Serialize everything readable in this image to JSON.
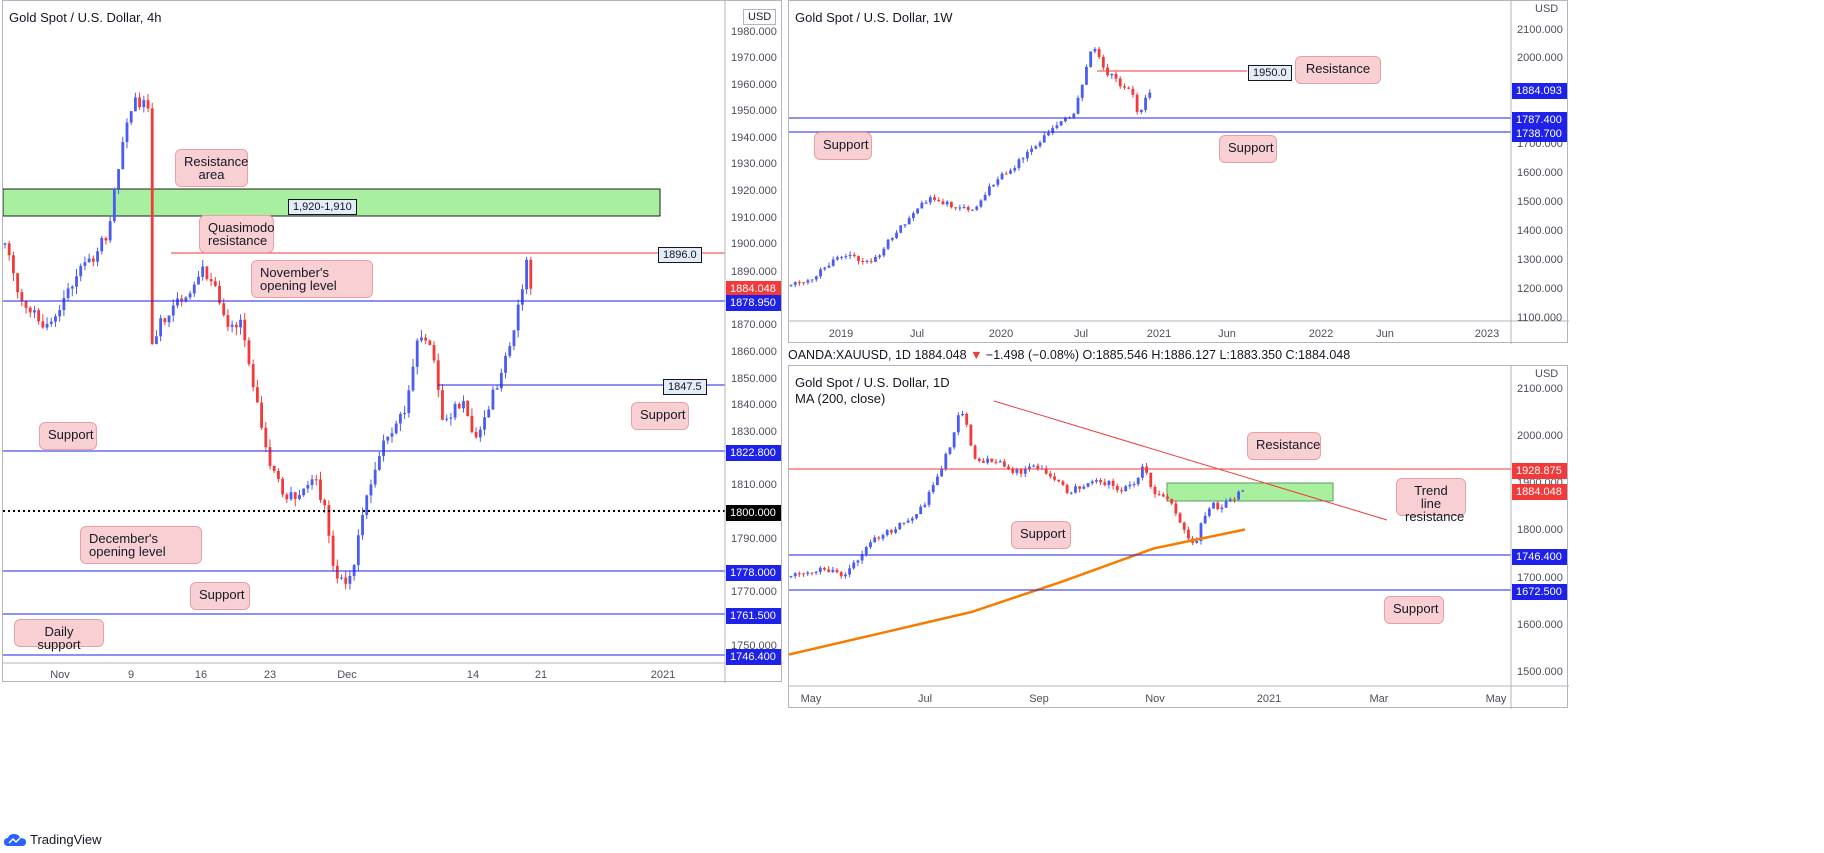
{
  "left": {
    "title": "Gold Spot / U.S. Dollar, 4h",
    "currency": "USD",
    "y_ticks": [
      "1980.000",
      "1970.000",
      "1960.000",
      "1950.000",
      "1940.000",
      "1930.000",
      "1920.000",
      "1910.000",
      "1900.000",
      "1890.000",
      "1870.000",
      "1860.000",
      "1850.000",
      "1840.000",
      "1830.000",
      "1810.000",
      "1790.000",
      "1770.000",
      "1750.000"
    ],
    "x_ticks": [
      "Nov",
      "9",
      "16",
      "23",
      "Dec",
      "14",
      "21",
      "2021"
    ],
    "tags": {
      "t1896": "1896.0",
      "t1884": "1884.048",
      "t1879": "1878.950",
      "t1847": "1847.5",
      "t1822": "1822.800",
      "t1800": "1800.000",
      "t1778": "1778.000",
      "t1761": "1761.500",
      "t1746": "1746.400"
    },
    "zone_label": "1,920-1,910",
    "callouts": {
      "resistance_area": "Resistance area",
      "quasimodo": "Quasimodo resistance",
      "november": "November's opening level",
      "support_right": "Support",
      "support_left": "Support",
      "december": "December's opening level",
      "support_bottom": "Support",
      "daily_support": "Daily support"
    }
  },
  "top_right": {
    "title": "Gold Spot / U.S. Dollar, 1W",
    "currency": "USD",
    "y_ticks": [
      "2100.000",
      "2000.000",
      "1700.000",
      "1600.000",
      "1500.000",
      "1400.000",
      "1300.000",
      "1200.000",
      "1100.000"
    ],
    "x_ticks": [
      "2019",
      "Jul",
      "2020",
      "Jul",
      "2021",
      "Jun",
      "2022",
      "Jun",
      "2023"
    ],
    "tags": {
      "t1884": "1884.093",
      "t1787": "1787.400",
      "t1738": "1738.700",
      "t1950": "1950.0"
    },
    "callouts": {
      "resistance": "Resistance",
      "support_left": "Support",
      "support_right": "Support"
    }
  },
  "bottom_right": {
    "title": "Gold Spot / U.S. Dollar, 1D",
    "ma_label": "MA (200, close)",
    "ohlc": {
      "symbol": "OANDA:XAUUSD, 1D",
      "last": "1884.048",
      "arrow": "▼",
      "change": "−1.498 (−0.08%)",
      "o": "1885.546",
      "h": "1886.127",
      "l": "1883.350",
      "c": "1884.048",
      "o_label": "O:",
      "h_label": "H:",
      "l_label": "L:",
      "c_label": "C:"
    },
    "currency": "USD",
    "y_ticks": [
      "2100.000",
      "2000.000",
      "1900.000",
      "1800.000",
      "1700.000",
      "1600.000",
      "1500.000"
    ],
    "x_ticks": [
      "May",
      "Jul",
      "Sep",
      "Nov",
      "2021",
      "Mar",
      "May"
    ],
    "tags": {
      "t1928": "1928.875",
      "t1884": "1884.048",
      "t1746": "1746.400",
      "t1672": "1672.500"
    },
    "callouts": {
      "resistance": "Resistance",
      "trend": "Trend line resistance",
      "support_left": "Support",
      "support_right": "Support"
    }
  },
  "colors": {
    "up": "#4b5cf0",
    "down": "#f23a3a",
    "support": "#1e22e8",
    "resistance": "#f23a3a",
    "zone": "#a8f0a0",
    "ma": "#f57c00"
  },
  "watermark": "TradingView",
  "chart_data": [
    {
      "type": "candlestick",
      "title": "Gold Spot / U.S. Dollar, 4h",
      "ylim": [
        1743,
        1988
      ],
      "x_ticks": [
        "Nov",
        "9",
        "16",
        "23",
        "Dec",
        "14",
        "21",
        "2021"
      ],
      "levels": {
        "support": [
          1878.95,
          1847.5,
          1822.8,
          1778.0,
          1761.5,
          1746.4
        ],
        "resistance": [
          1896.0
        ],
        "round_number": [
          1800.0
        ]
      },
      "zones": [
        {
          "label": "1,920-1,910",
          "from": 1910,
          "to": 1920
        }
      ],
      "last_price": 1884.048,
      "path": [
        [
          0,
          1900
        ],
        [
          10,
          1880
        ],
        [
          20,
          1875
        ],
        [
          30,
          1868
        ],
        [
          40,
          1880
        ],
        [
          50,
          1890
        ],
        [
          60,
          1895
        ],
        [
          70,
          1905
        ],
        [
          78,
          1930
        ],
        [
          82,
          1945
        ],
        [
          88,
          1955
        ],
        [
          95,
          1952
        ],
        [
          98,
          1950
        ],
        [
          100,
          1862
        ],
        [
          105,
          1870
        ],
        [
          112,
          1875
        ],
        [
          120,
          1880
        ],
        [
          128,
          1885
        ],
        [
          135,
          1890
        ],
        [
          140,
          1888
        ],
        [
          148,
          1875
        ],
        [
          155,
          1868
        ],
        [
          160,
          1872
        ],
        [
          165,
          1860
        ],
        [
          172,
          1840
        ],
        [
          180,
          1818
        ],
        [
          188,
          1808
        ],
        [
          195,
          1805
        ],
        [
          205,
          1808
        ],
        [
          212,
          1812
        ],
        [
          218,
          1800
        ],
        [
          225,
          1775
        ],
        [
          232,
          1772
        ],
        [
          238,
          1782
        ],
        [
          245,
          1805
        ],
        [
          252,
          1815
        ],
        [
          258,
          1825
        ],
        [
          265,
          1830
        ],
        [
          272,
          1838
        ],
        [
          280,
          1862
        ],
        [
          285,
          1868
        ],
        [
          292,
          1858
        ],
        [
          298,
          1832
        ],
        [
          305,
          1838
        ],
        [
          312,
          1840
        ],
        [
          318,
          1828
        ],
        [
          322,
          1830
        ],
        [
          328,
          1838
        ],
        [
          335,
          1848
        ],
        [
          340,
          1858
        ],
        [
          345,
          1865
        ],
        [
          350,
          1878
        ],
        [
          355,
          1893
        ],
        [
          358,
          1884
        ]
      ]
    },
    {
      "type": "candlestick",
      "title": "Gold Spot / U.S. Dollar, 1W",
      "ylim": [
        1095,
        2130
      ],
      "x_ticks": [
        "2019",
        "Jul",
        "2020",
        "Jul",
        "2021",
        "Jun",
        "2022",
        "Jun",
        "2023"
      ],
      "levels": {
        "support": [
          1787.4,
          1738.7
        ],
        "resistance": [
          1950.0
        ]
      },
      "last_price": 1884.093,
      "path": [
        [
          0,
          1210
        ],
        [
          10,
          1220
        ],
        [
          20,
          1240
        ],
        [
          30,
          1280
        ],
        [
          40,
          1300
        ],
        [
          50,
          1320
        ],
        [
          60,
          1300
        ],
        [
          70,
          1285
        ],
        [
          80,
          1330
        ],
        [
          90,
          1390
        ],
        [
          100,
          1420
        ],
        [
          110,
          1480
        ],
        [
          120,
          1510
        ],
        [
          130,
          1500
        ],
        [
          140,
          1490
        ],
        [
          150,
          1475
        ],
        [
          160,
          1480
        ],
        [
          170,
          1520
        ],
        [
          180,
          1580
        ],
        [
          190,
          1600
        ],
        [
          200,
          1640
        ],
        [
          210,
          1680
        ],
        [
          220,
          1720
        ],
        [
          230,
          1760
        ],
        [
          240,
          1780
        ],
        [
          250,
          1820
        ],
        [
          255,
          1900
        ],
        [
          260,
          1980
        ],
        [
          265,
          2040
        ],
        [
          270,
          2000
        ],
        [
          275,
          1960
        ],
        [
          280,
          1940
        ],
        [
          285,
          1930
        ],
        [
          290,
          1900
        ],
        [
          295,
          1890
        ],
        [
          300,
          1870
        ],
        [
          305,
          1800
        ],
        [
          310,
          1850
        ],
        [
          315,
          1884
        ]
      ]
    },
    {
      "type": "candlestick",
      "title": "Gold Spot / U.S. Dollar, 1D",
      "ylim": [
        1475,
        2135
      ],
      "x_ticks": [
        "May",
        "Jul",
        "Sep",
        "Nov",
        "2021",
        "Mar",
        "May"
      ],
      "levels": {
        "support": [
          1746.4,
          1672.5
        ],
        "resistance": [
          1928.875
        ]
      },
      "zones": [
        {
          "from": 1860,
          "to": 1900
        }
      ],
      "trendline": [
        [
          1,
          2075
        ],
        [
          5,
          1820
        ]
      ],
      "ma_200": [
        [
          0,
          1535
        ],
        [
          1,
          1580
        ],
        [
          2,
          1625
        ],
        [
          3,
          1690
        ],
        [
          4,
          1760
        ],
        [
          5,
          1800
        ]
      ],
      "last_price": 1884.048,
      "path": [
        [
          0,
          1700
        ],
        [
          12,
          1710
        ],
        [
          25,
          1720
        ],
        [
          38,
          1700
        ],
        [
          50,
          1740
        ],
        [
          62,
          1780
        ],
        [
          75,
          1800
        ],
        [
          88,
          1820
        ],
        [
          100,
          1860
        ],
        [
          110,
          1920
        ],
        [
          118,
          1980
        ],
        [
          125,
          2050
        ],
        [
          130,
          2030
        ],
        [
          135,
          1960
        ],
        [
          142,
          1940
        ],
        [
          150,
          1950
        ],
        [
          160,
          1930
        ],
        [
          170,
          1920
        ],
        [
          180,
          1940
        ],
        [
          190,
          1920
        ],
        [
          198,
          1900
        ],
        [
          205,
          1880
        ],
        [
          215,
          1890
        ],
        [
          225,
          1900
        ],
        [
          235,
          1900
        ],
        [
          245,
          1880
        ],
        [
          255,
          1900
        ],
        [
          262,
          1940
        ],
        [
          268,
          1880
        ],
        [
          275,
          1870
        ],
        [
          283,
          1850
        ],
        [
          290,
          1800
        ],
        [
          296,
          1780
        ],
        [
          300,
          1770
        ],
        [
          305,
          1820
        ],
        [
          312,
          1860
        ],
        [
          318,
          1840
        ],
        [
          324,
          1860
        ],
        [
          330,
          1870
        ],
        [
          335,
          1884
        ]
      ]
    }
  ]
}
